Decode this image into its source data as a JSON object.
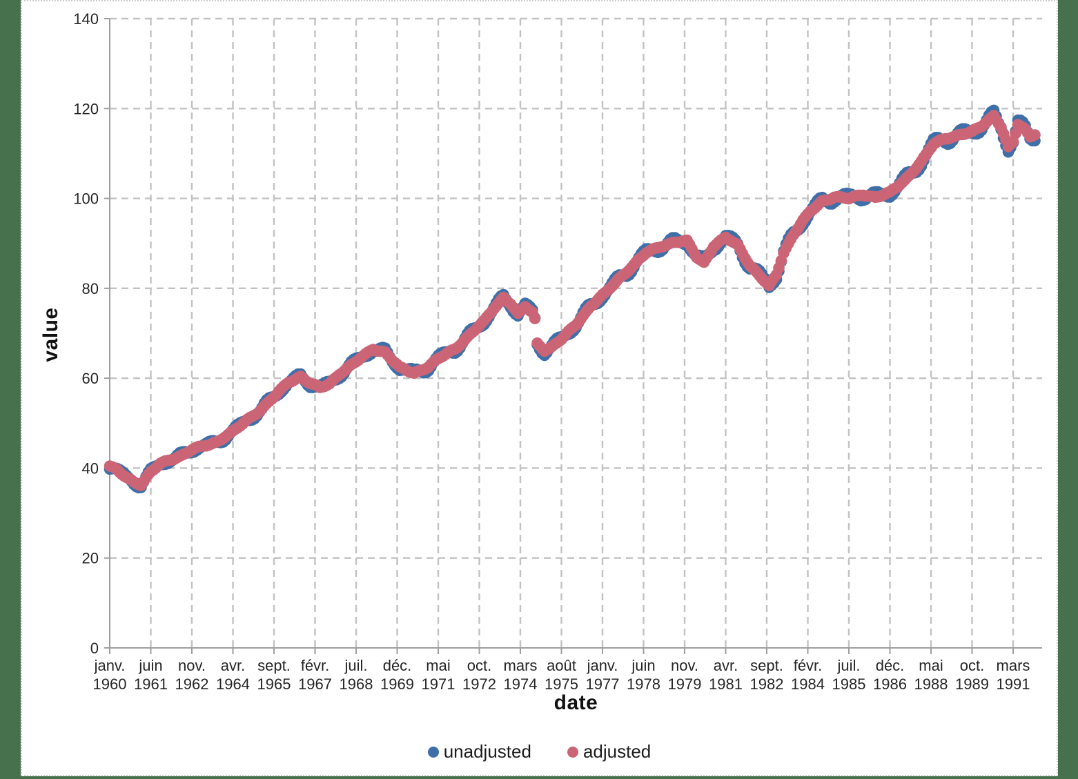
{
  "page": {
    "background_color": "#47714D",
    "canvas_color": "#FFFFFF",
    "grid_color": "#C2C2C2",
    "axis_color": "#9E9E9E",
    "text_color": "#262626"
  },
  "chart_data": {
    "type": "scatter",
    "title": "",
    "xlabel": "date",
    "ylabel": "value",
    "ylim": [
      0,
      140
    ],
    "y_ticks": [
      0,
      20,
      40,
      60,
      80,
      100,
      120,
      140
    ],
    "grid": true,
    "legend_position": "bottom",
    "x_start": "1960-01",
    "x_end": "1991-12",
    "x_tick_interval_months": 17,
    "x_ticks": [
      {
        "month": "janv.",
        "year": "1960"
      },
      {
        "month": "juin",
        "year": "1961"
      },
      {
        "month": "nov.",
        "year": "1962"
      },
      {
        "month": "avr.",
        "year": "1964"
      },
      {
        "month": "sept.",
        "year": "1965"
      },
      {
        "month": "févr.",
        "year": "1967"
      },
      {
        "month": "juil.",
        "year": "1968"
      },
      {
        "month": "déc.",
        "year": "1969"
      },
      {
        "month": "mai",
        "year": "1971"
      },
      {
        "month": "oct.",
        "year": "1972"
      },
      {
        "month": "mars",
        "year": "1974"
      },
      {
        "month": "août",
        "year": "1975"
      },
      {
        "month": "janv.",
        "year": "1977"
      },
      {
        "month": "juin",
        "year": "1978"
      },
      {
        "month": "nov.",
        "year": "1979"
      },
      {
        "month": "avr.",
        "year": "1981"
      },
      {
        "month": "sept.",
        "year": "1982"
      },
      {
        "month": "févr.",
        "year": "1984"
      },
      {
        "month": "juil.",
        "year": "1985"
      },
      {
        "month": "déc.",
        "year": "1986"
      },
      {
        "month": "mai",
        "year": "1988"
      },
      {
        "month": "oct.",
        "year": "1989"
      },
      {
        "month": "mars",
        "year": "1991"
      }
    ],
    "series": [
      {
        "name": "unadjusted",
        "color": "#3F6FA8",
        "definition": "adjusted value plus seasonal oscillation",
        "seasonal_amplitude_start": 0.7,
        "seasonal_amplitude_end": 1.3,
        "seasonal_phase": -1.2
      },
      {
        "name": "adjusted",
        "color": "#CB6576",
        "noise_amplitude": 0.3,
        "keypoints": [
          [
            "1960-01",
            40.3
          ],
          [
            "1960-04",
            39.5
          ],
          [
            "1960-08",
            38.0
          ],
          [
            "1960-11",
            37.0
          ],
          [
            "1961-02",
            36.3
          ],
          [
            "1961-06",
            39.0
          ],
          [
            "1961-10",
            41.0
          ],
          [
            "1962-02",
            42.0
          ],
          [
            "1962-07",
            42.8
          ],
          [
            "1962-11",
            44.0
          ],
          [
            "1963-04",
            45.0
          ],
          [
            "1963-09",
            45.8
          ],
          [
            "1964-04",
            48.0
          ],
          [
            "1964-10",
            50.8
          ],
          [
            "1965-04",
            53.2
          ],
          [
            "1965-10",
            56.3
          ],
          [
            "1966-03",
            59.2
          ],
          [
            "1966-08",
            60.4
          ],
          [
            "1966-12",
            58.8
          ],
          [
            "1967-04",
            57.8
          ],
          [
            "1967-08",
            58.8
          ],
          [
            "1967-12",
            61.0
          ],
          [
            "1968-06",
            63.2
          ],
          [
            "1968-11",
            65.3
          ],
          [
            "1969-02",
            66.6
          ],
          [
            "1969-07",
            65.8
          ],
          [
            "1969-10",
            64.0
          ],
          [
            "1970-01",
            62.3
          ],
          [
            "1970-07",
            61.2
          ],
          [
            "1971-01",
            62.6
          ],
          [
            "1971-06",
            64.6
          ],
          [
            "1971-12",
            66.6
          ],
          [
            "1972-06",
            69.6
          ],
          [
            "1972-12",
            72.6
          ],
          [
            "1973-04",
            75.6
          ],
          [
            "1973-08",
            78.0
          ],
          [
            "1973-11",
            76.6
          ],
          [
            "1974-02",
            74.2
          ],
          [
            "1974-05",
            75.9
          ],
          [
            "1974-08",
            74.6
          ],
          [
            "1974-09",
            73.2
          ],
          [
            "1974-10",
            67.8
          ],
          [
            "1975-01",
            66.3
          ],
          [
            "1975-04",
            66.9
          ],
          [
            "1975-08",
            68.6
          ],
          [
            "1976-02",
            72.0
          ],
          [
            "1976-08",
            76.0
          ],
          [
            "1977-02",
            78.8
          ],
          [
            "1977-08",
            82.3
          ],
          [
            "1978-02",
            85.2
          ],
          [
            "1978-07",
            87.8
          ],
          [
            "1979-01",
            89.4
          ],
          [
            "1979-07",
            90.3
          ],
          [
            "1979-12",
            90.4
          ],
          [
            "1980-04",
            87.0
          ],
          [
            "1980-07",
            85.8
          ],
          [
            "1980-11",
            89.4
          ],
          [
            "1981-04",
            91.2
          ],
          [
            "1981-09",
            89.6
          ],
          [
            "1982-02",
            85.2
          ],
          [
            "1982-07",
            82.2
          ],
          [
            "1982-10",
            80.4
          ],
          [
            "1983-01",
            83.0
          ],
          [
            "1983-04",
            88.0
          ],
          [
            "1983-08",
            92.0
          ],
          [
            "1983-12",
            95.0
          ],
          [
            "1984-03",
            97.0
          ],
          [
            "1984-08",
            99.4
          ],
          [
            "1985-01",
            100.4
          ],
          [
            "1985-07",
            99.9
          ],
          [
            "1986-01",
            100.9
          ],
          [
            "1986-06",
            100.3
          ],
          [
            "1986-12",
            101.2
          ],
          [
            "1987-06",
            104.0
          ],
          [
            "1988-01",
            108.2
          ],
          [
            "1988-06",
            112.0
          ],
          [
            "1988-11",
            113.4
          ],
          [
            "1989-05",
            114.2
          ],
          [
            "1989-10",
            114.7
          ],
          [
            "1990-02",
            116.1
          ],
          [
            "1990-07",
            118.5
          ],
          [
            "1990-10",
            116.0
          ],
          [
            "1991-01",
            111.3
          ],
          [
            "1991-03",
            112.5
          ],
          [
            "1991-05",
            116.4
          ],
          [
            "1991-08",
            115.3
          ],
          [
            "1991-10",
            113.9
          ],
          [
            "1991-12",
            114.4
          ]
        ]
      }
    ]
  }
}
